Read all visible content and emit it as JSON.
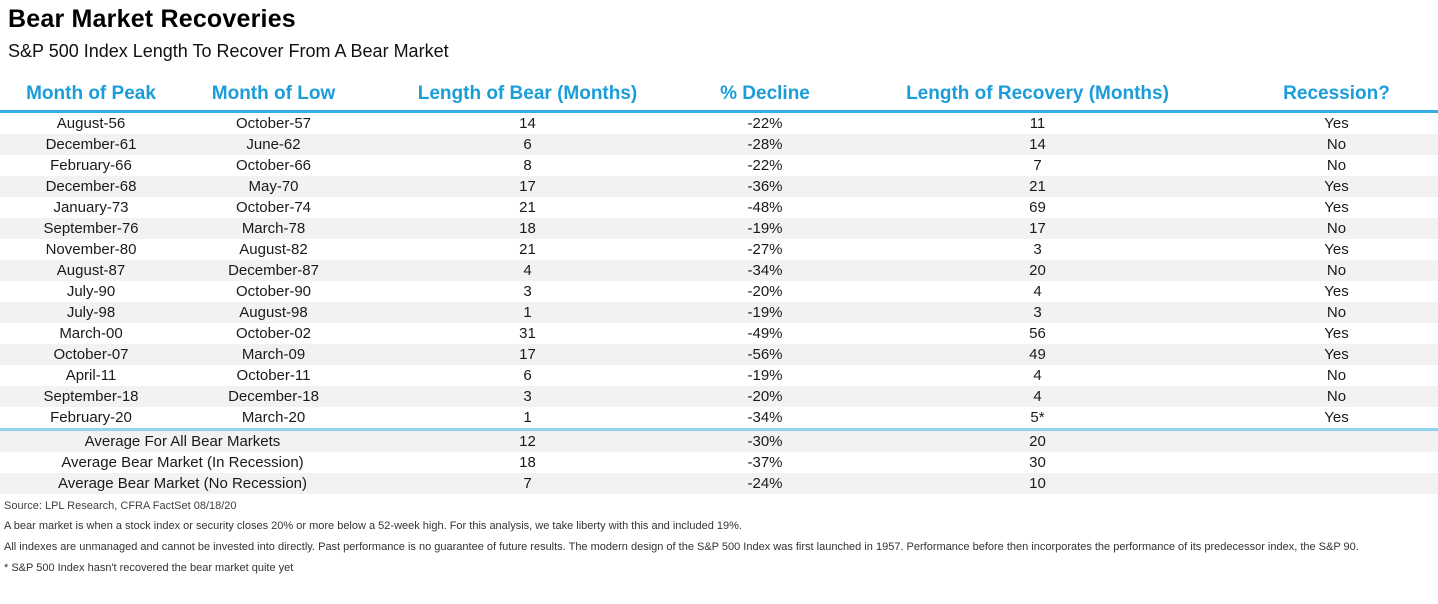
{
  "colors": {
    "header_blue": "#1b9dd9",
    "header_rule_blue": "#35aee3",
    "summary_rule_blue": "#92d4ef",
    "negative_red": "#ed1c24",
    "recession_yes_red": "#ed1c24",
    "recession_no_green": "#548235",
    "alt_row_gray": "#f2f2f2"
  },
  "chart_data": {
    "type": "table",
    "title": "Bear Market Recoveries",
    "subtitle": "S&P 500 Index Length To Recover From A Bear Market",
    "columns": [
      "Month of Peak",
      "Month of Low",
      "Length of Bear (Months)",
      "% Decline",
      "Length of Recovery (Months)",
      "Recession?"
    ],
    "rows": [
      [
        "August-56",
        "October-57",
        "14",
        "-22%",
        "11",
        "Yes"
      ],
      [
        "December-61",
        "June-62",
        "6",
        "-28%",
        "14",
        "No"
      ],
      [
        "February-66",
        "October-66",
        "8",
        "-22%",
        "7",
        "No"
      ],
      [
        "December-68",
        "May-70",
        "17",
        "-36%",
        "21",
        "Yes"
      ],
      [
        "January-73",
        "October-74",
        "21",
        "-48%",
        "69",
        "Yes"
      ],
      [
        "September-76",
        "March-78",
        "18",
        "-19%",
        "17",
        "No"
      ],
      [
        "November-80",
        "August-82",
        "21",
        "-27%",
        "3",
        "Yes"
      ],
      [
        "August-87",
        "December-87",
        "4",
        "-34%",
        "20",
        "No"
      ],
      [
        "July-90",
        "October-90",
        "3",
        "-20%",
        "4",
        "Yes"
      ],
      [
        "July-98",
        "August-98",
        "1",
        "-19%",
        "3",
        "No"
      ],
      [
        "March-00",
        "October-02",
        "31",
        "-49%",
        "56",
        "Yes"
      ],
      [
        "October-07",
        "March-09",
        "17",
        "-56%",
        "49",
        "Yes"
      ],
      [
        "April-11",
        "October-11",
        "6",
        "-19%",
        "4",
        "No"
      ],
      [
        "September-18",
        "December-18",
        "3",
        "-20%",
        "4",
        "No"
      ],
      [
        "February-20",
        "March-20",
        "1",
        "-34%",
        "5*",
        "Yes"
      ]
    ],
    "summary_rows": [
      [
        "Average For All Bear Markets",
        "12",
        "-30%",
        "20",
        ""
      ],
      [
        "Average Bear Market (In Recession)",
        "18",
        "-37%",
        "30",
        ""
      ],
      [
        "Average Bear Market (No Recession)",
        "7",
        "-24%",
        "10",
        ""
      ]
    ],
    "footnotes": [
      "Source: LPL Research, CFRA FactSet 08/18/20",
      "A bear market is when a stock index or security closes 20% or more below a 52-week high. For this analysis, we take liberty with this and included 19%.",
      "All indexes are unmanaged and cannot be invested into directly. Past performance is no guarantee of future results. The modern design of the S&P 500 Index was first launched in 1957. Performance before then incorporates the performance of its predecessor index, the S&P 90.",
      "* S&P 500 Index hasn't recovered the bear market quite yet"
    ]
  }
}
